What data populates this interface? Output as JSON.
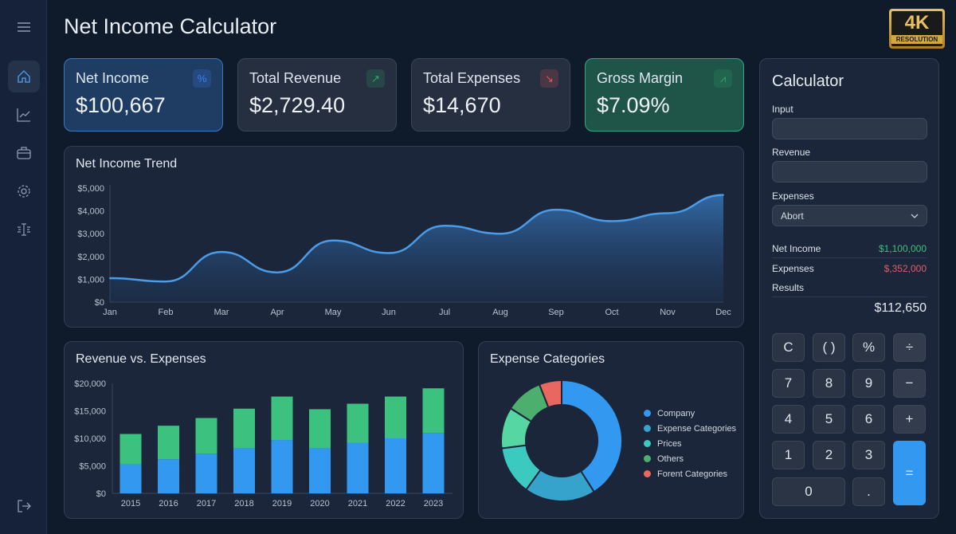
{
  "header": {
    "title": "Net Income Calculator"
  },
  "badge": {
    "big": "4K",
    "small": "RESOLUTION"
  },
  "sidebar": {
    "items": [
      {
        "icon": "menu-icon"
      },
      {
        "icon": "home-icon",
        "active": true
      },
      {
        "icon": "line-chart-icon"
      },
      {
        "icon": "briefcase-icon"
      },
      {
        "icon": "gear-icon"
      },
      {
        "icon": "filter-icon"
      },
      {
        "icon": "logout-icon"
      }
    ]
  },
  "cards": [
    {
      "label": "Net Income",
      "value": "$100,667",
      "icon": "%",
      "icon_name": "percent-icon",
      "color": "#3b82f6"
    },
    {
      "label": "Total Revenue",
      "value": "$2,729.40",
      "icon": "↗",
      "icon_name": "arrow-up-right-icon",
      "color": "#34a36b"
    },
    {
      "label": "Total Expenses",
      "value": "$14,670",
      "icon": "↘",
      "icon_name": "arrow-down-right-icon",
      "color": "#e05555"
    },
    {
      "label": "Gross Margin",
      "value": "$7.09%",
      "icon": "⩘",
      "icon_name": "trend-icon",
      "color": "#34a36b"
    }
  ],
  "trend": {
    "title": "Net Income Trend"
  },
  "revexp": {
    "title": "Revenue vs. Expenses"
  },
  "categories": {
    "title": "Expense Categories"
  },
  "calculator": {
    "title": "Calculator",
    "input_label": "Input",
    "input_value": "",
    "revenue_label": "Revenue",
    "revenue_value": "",
    "expenses_label": "Expenses",
    "expenses_selected": "Abort",
    "net_income_label": "Net Income",
    "net_income_value": "$1,100,000",
    "expenses_row_label": "Expenses",
    "expenses_row_value": "$,352,000",
    "results_label": "Results",
    "results_value": "$112,650",
    "keys": [
      "C",
      "( )",
      "%",
      "÷",
      "7",
      "8",
      "9",
      "−",
      "4",
      "5",
      "6",
      "+",
      "1",
      "2",
      "3",
      "=",
      "0",
      "."
    ]
  },
  "chart_data": [
    {
      "type": "area",
      "title": "Net Income Trend",
      "x": [
        "Jan",
        "Feb",
        "Mar",
        "Apr",
        "May",
        "Jun",
        "Jul",
        "Aug",
        "Sep",
        "Oct",
        "Nov",
        "Dec"
      ],
      "values": [
        1050,
        900,
        2200,
        1300,
        2700,
        2150,
        3350,
        3000,
        4050,
        3550,
        3900,
        4700
      ],
      "yticks": [
        "$0",
        "$1,000",
        "$2,000",
        "$3,000",
        "$4,000",
        "$5,000"
      ],
      "ylim": [
        0,
        5000
      ],
      "color": "#4a9be8"
    },
    {
      "type": "bar",
      "stacked": true,
      "title": "Revenue vs. Expenses",
      "categories": [
        "2015",
        "2016",
        "2017",
        "2018",
        "2019",
        "2020",
        "2021",
        "2022",
        "2023"
      ],
      "series": [
        {
          "values": [
            5300,
            6200,
            7200,
            8200,
            9700,
            8200,
            9200,
            10000,
            11000
          ],
          "color": "#3399f0"
        },
        {
          "values": [
            5500,
            6100,
            6500,
            7200,
            7900,
            7100,
            7100,
            7600,
            8100
          ],
          "color": "#3cc17e"
        }
      ],
      "yticks": [
        "$0",
        "$5,000",
        "$10,000",
        "$15,000",
        "$20,000"
      ],
      "ylim": [
        0,
        20000
      ]
    },
    {
      "type": "pie",
      "donut": true,
      "title": "Expense Categories",
      "values": [
        41,
        19,
        13,
        11,
        10,
        6
      ],
      "colors": [
        "#3399f0",
        "#36a3cc",
        "#3cc9bf",
        "#55d6a2",
        "#4caf6e",
        "#e8675f"
      ],
      "legend": [
        {
          "label": "Company",
          "color": "#3399f0"
        },
        {
          "label": "Expense Categories",
          "color": "#36a3cc"
        },
        {
          "label": "Prices",
          "color": "#3cc9bf"
        },
        {
          "label": "Others",
          "color": "#4caf6e"
        },
        {
          "label": "Forent Categories",
          "color": "#e8675f"
        }
      ],
      "legend_position": "right"
    }
  ]
}
